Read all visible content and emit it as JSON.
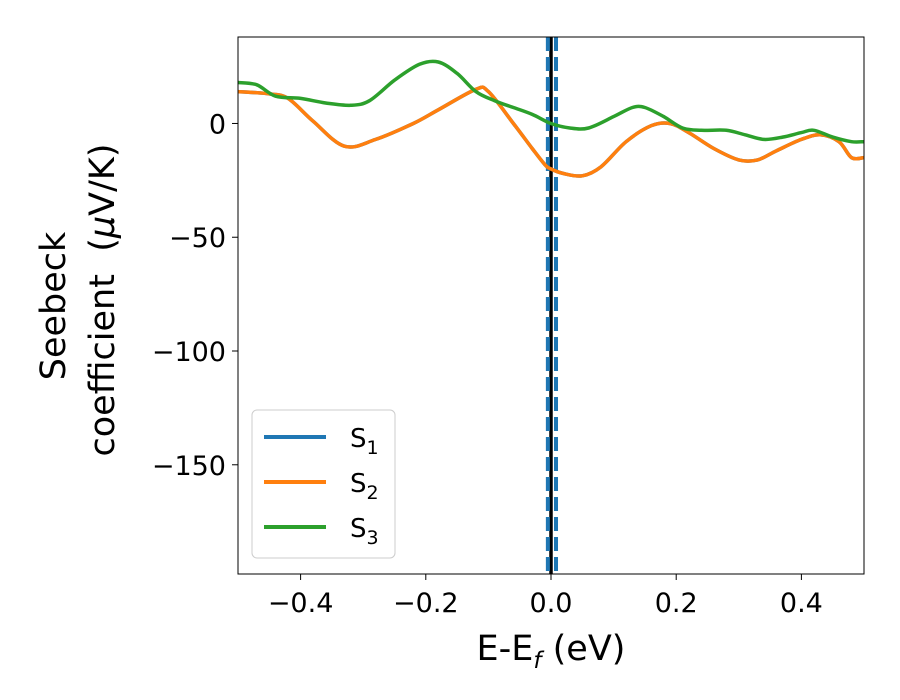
{
  "chart_data": {
    "type": "line",
    "title": "",
    "xlabel": {
      "main": "E-E",
      "sub": "f",
      "unit": "(eV)"
    },
    "ylabel": {
      "line1": "Seebeck",
      "line2_text": "coefficient  (",
      "line2_symbol": "μ",
      "line2_unit": "V/K)"
    },
    "xlim": [
      -0.5,
      0.5
    ],
    "ylim": [
      -198,
      38
    ],
    "xticks": [
      {
        "value": -0.4,
        "label": "−0.4"
      },
      {
        "value": -0.2,
        "label": "−0.2"
      },
      {
        "value": 0.0,
        "label": "0.0"
      },
      {
        "value": 0.2,
        "label": "0.2"
      },
      {
        "value": 0.4,
        "label": "0.4"
      }
    ],
    "yticks": [
      {
        "value": 0,
        "label": "0"
      },
      {
        "value": -50,
        "label": "−50"
      },
      {
        "value": -100,
        "label": "−100"
      },
      {
        "value": -150,
        "label": "−150"
      }
    ],
    "grid": false,
    "legend_position": "lower-left",
    "vlines": [
      {
        "x": 0.0,
        "color": "#000000",
        "style": "solid"
      },
      {
        "x": -0.005,
        "color": "#1f77b4",
        "style": "dashed"
      },
      {
        "x": 0.008,
        "color": "#1f77b4",
        "style": "dashed"
      }
    ],
    "series": [
      {
        "name": "S",
        "sub": "1",
        "color": "#1f77b4",
        "x": [
          -0.5,
          -0.45,
          -0.42,
          -0.38,
          -0.33,
          -0.28,
          -0.22,
          -0.18,
          -0.12,
          -0.1,
          -0.06,
          -0.03,
          -0.01,
          0.0,
          0.02,
          0.05,
          0.08,
          0.12,
          0.16,
          0.19,
          0.22,
          0.26,
          0.3,
          0.33,
          0.36,
          0.4,
          0.43,
          0.46,
          0.48,
          0.5
        ],
        "values": [
          14,
          13,
          11,
          1,
          -10,
          -7,
          0,
          6,
          15,
          14,
          0,
          -11,
          -18,
          -20,
          -22,
          -23,
          -19,
          -8,
          -1,
          0,
          -4,
          -11,
          -16,
          -16,
          -12,
          -7,
          -5,
          -8,
          -15,
          -15
        ]
      },
      {
        "name": "S",
        "sub": "2",
        "color": "#ff7f0e",
        "x": [
          -0.5,
          -0.45,
          -0.42,
          -0.38,
          -0.33,
          -0.28,
          -0.22,
          -0.18,
          -0.12,
          -0.1,
          -0.06,
          -0.03,
          -0.01,
          0.0,
          0.02,
          0.05,
          0.08,
          0.12,
          0.16,
          0.19,
          0.22,
          0.26,
          0.3,
          0.33,
          0.36,
          0.4,
          0.43,
          0.46,
          0.48,
          0.5
        ],
        "values": [
          14,
          13,
          11,
          1,
          -10,
          -7,
          0,
          6,
          15,
          14,
          0,
          -11,
          -18,
          -20,
          -22,
          -23,
          -19,
          -8,
          -1,
          0,
          -4,
          -11,
          -16,
          -16,
          -12,
          -7,
          -5,
          -8,
          -15,
          -15
        ]
      },
      {
        "name": "S",
        "sub": "3",
        "color": "#2ca02c",
        "x": [
          -0.5,
          -0.47,
          -0.44,
          -0.4,
          -0.36,
          -0.32,
          -0.29,
          -0.25,
          -0.21,
          -0.18,
          -0.15,
          -0.12,
          -0.09,
          -0.06,
          -0.03,
          0.0,
          0.03,
          0.06,
          0.1,
          0.13,
          0.15,
          0.18,
          0.21,
          0.24,
          0.28,
          0.31,
          0.34,
          0.37,
          0.4,
          0.42,
          0.45,
          0.48,
          0.5
        ],
        "values": [
          18,
          17,
          12,
          11,
          9,
          8,
          10,
          19,
          26,
          27,
          22,
          14,
          10,
          7,
          4,
          0,
          -2,
          -2,
          3,
          7,
          7,
          3,
          -2,
          -3,
          -3,
          -5,
          -7,
          -6,
          -4,
          -3,
          -6,
          -8,
          -8
        ]
      }
    ]
  }
}
